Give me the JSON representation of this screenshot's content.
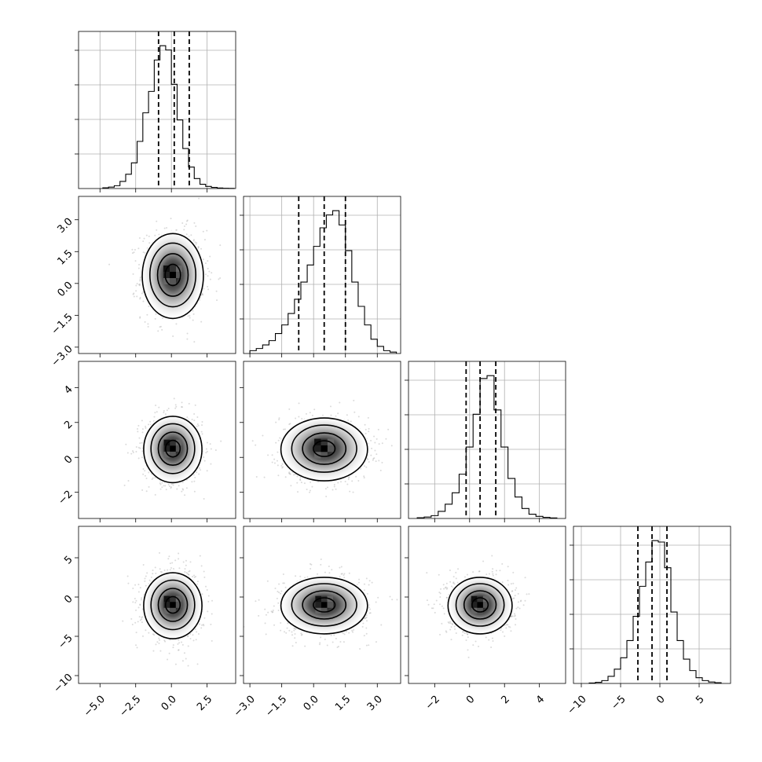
{
  "chart_data": {
    "type": "corner",
    "parameters": 4,
    "axes": [
      {
        "range": [
          -6.5,
          4.5
        ],
        "ticks": [
          -5.0,
          -2.5,
          0.0,
          2.5
        ],
        "tick_labels": [
          "−5.0",
          "−2.5",
          "0.0",
          "2.5"
        ]
      },
      {
        "range": [
          -3.3,
          4.1
        ],
        "ticks": [
          -3.0,
          -1.5,
          0.0,
          1.5,
          3.0
        ],
        "tick_labels": [
          "−3.0",
          "−1.5",
          "0.0",
          "1.5",
          "3.0"
        ]
      },
      {
        "range": [
          -3.5,
          5.5
        ],
        "ticks": [
          -2,
          0,
          2,
          4
        ],
        "tick_labels": [
          "−2",
          "0",
          "2",
          "4"
        ]
      },
      {
        "range": [
          -11,
          9
        ],
        "ticks": [
          -10,
          -5,
          0,
          5
        ],
        "tick_labels": [
          "−10",
          "−5",
          "0",
          "5"
        ]
      }
    ],
    "histograms": [
      {
        "bin_edges": [
          -4.8,
          -4.4,
          -4.0,
          -3.6,
          -3.2,
          -2.8,
          -2.4,
          -2.0,
          -1.6,
          -1.2,
          -0.8,
          -0.4,
          0.0,
          0.4,
          0.8,
          1.2,
          1.6,
          2.0,
          2.4,
          2.8,
          3.2,
          3.6,
          4.0,
          4.4
        ],
        "counts": [
          0.005,
          0.01,
          0.02,
          0.05,
          0.1,
          0.18,
          0.33,
          0.53,
          0.68,
          0.9,
          1.0,
          0.97,
          0.73,
          0.48,
          0.28,
          0.15,
          0.07,
          0.03,
          0.015,
          0.008,
          0.004,
          0.002,
          0.001
        ],
        "quantiles": [
          -0.9,
          0.2,
          1.25
        ]
      },
      {
        "bin_edges": [
          -3.0,
          -2.7,
          -2.4,
          -2.1,
          -1.8,
          -1.5,
          -1.2,
          -0.9,
          -0.6,
          -0.3,
          0.0,
          0.3,
          0.6,
          0.9,
          1.2,
          1.5,
          1.8,
          2.1,
          2.4,
          2.7,
          3.0,
          3.3,
          3.6,
          3.9
        ],
        "counts": [
          0.02,
          0.035,
          0.06,
          0.09,
          0.14,
          0.2,
          0.28,
          0.38,
          0.5,
          0.62,
          0.75,
          0.88,
          0.97,
          1.0,
          0.9,
          0.72,
          0.5,
          0.33,
          0.2,
          0.1,
          0.05,
          0.02,
          0.01
        ],
        "quantiles": [
          -0.7,
          0.5,
          1.5
        ]
      },
      {
        "bin_edges": [
          -3.0,
          -2.6,
          -2.2,
          -1.8,
          -1.4,
          -1.0,
          -0.6,
          -0.2,
          0.2,
          0.6,
          1.0,
          1.4,
          1.8,
          2.2,
          2.6,
          3.0,
          3.4,
          3.8,
          4.2,
          4.6,
          5.0
        ],
        "counts": [
          0.005,
          0.01,
          0.02,
          0.05,
          0.1,
          0.18,
          0.31,
          0.5,
          0.73,
          0.98,
          1.0,
          0.76,
          0.5,
          0.28,
          0.15,
          0.07,
          0.03,
          0.015,
          0.008,
          0.004
        ],
        "quantiles": [
          -0.2,
          0.6,
          1.5
        ]
      },
      {
        "bin_edges": [
          -9.0,
          -8.2,
          -7.4,
          -6.6,
          -5.8,
          -5.0,
          -4.2,
          -3.4,
          -2.6,
          -1.8,
          -1.0,
          -0.2,
          0.6,
          1.4,
          2.2,
          3.0,
          3.8,
          4.6,
          5.4,
          6.2,
          7.0,
          7.8
        ],
        "counts": [
          0.003,
          0.008,
          0.02,
          0.05,
          0.1,
          0.18,
          0.3,
          0.47,
          0.68,
          0.85,
          1.0,
          0.99,
          0.81,
          0.5,
          0.3,
          0.17,
          0.09,
          0.04,
          0.02,
          0.01,
          0.005
        ],
        "quantiles": [
          -2.8,
          -1.0,
          0.9
        ]
      }
    ],
    "pairs": [
      {
        "x_param": 0,
        "y_param": 1,
        "mean": [
          0.1,
          0.4
        ],
        "sd": [
          1.05,
          1.0
        ]
      },
      {
        "x_param": 0,
        "y_param": 2,
        "mean": [
          0.1,
          0.5
        ],
        "sd": [
          1.0,
          0.95
        ]
      },
      {
        "x_param": 1,
        "y_param": 2,
        "mean": [
          0.5,
          0.5
        ],
        "sd": [
          1.0,
          0.9
        ]
      },
      {
        "x_param": 0,
        "y_param": 3,
        "mean": [
          0.1,
          -1.0
        ],
        "sd": [
          1.0,
          2.1
        ]
      },
      {
        "x_param": 1,
        "y_param": 3,
        "mean": [
          0.5,
          -1.0
        ],
        "sd": [
          1.0,
          1.8
        ]
      },
      {
        "x_param": 2,
        "y_param": 3,
        "mean": [
          0.6,
          -1.0
        ],
        "sd": [
          0.9,
          1.8
        ]
      }
    ],
    "contour_levels_sigma": [
      0.5,
      1.0,
      1.5,
      2.0
    ],
    "grid": true,
    "legend": null
  }
}
